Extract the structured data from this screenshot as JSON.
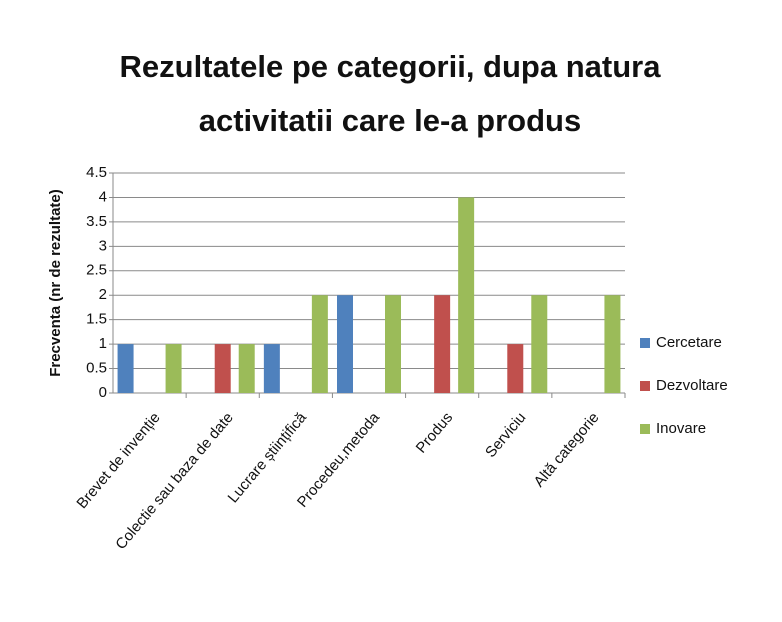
{
  "chart_data": {
    "type": "bar",
    "title": "Rezultatele pe categorii, dupa natura activitatii care le-a produs",
    "y_label": "Frecventa (nr de rezultate)",
    "categories": [
      "Brevet de invenție",
      "Colectie sau baza de date",
      "Lucrare științifică",
      "Procedeu,metoda",
      "Produs",
      "Serviciu",
      "Altă categorie"
    ],
    "series": [
      {
        "name": "Cercetare",
        "color": "#4f81bd",
        "values": [
          1,
          0,
          1,
          2,
          0,
          0,
          0
        ]
      },
      {
        "name": "Dezvoltare",
        "color": "#c0504d",
        "values": [
          0,
          1,
          0,
          0,
          2,
          1,
          0
        ]
      },
      {
        "name": "Inovare",
        "color": "#9bbb59",
        "values": [
          1,
          1,
          2,
          2,
          4,
          2,
          2
        ]
      }
    ],
    "ylim": [
      0,
      4.5
    ],
    "yticks": [
      0,
      0.5,
      1,
      1.5,
      2,
      2.5,
      3,
      3.5,
      4,
      4.5
    ],
    "grid": true,
    "legend": "right"
  }
}
